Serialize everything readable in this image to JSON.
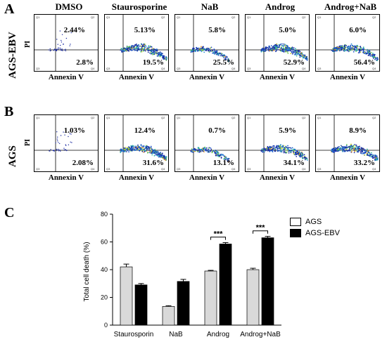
{
  "panels": {
    "a": "A",
    "b": "B",
    "c": "C"
  },
  "columns": [
    "DMSO",
    "Staurosporine",
    "NaB",
    "Androg",
    "Androg+NaB"
  ],
  "rows": [
    {
      "label": "AGS-EBV",
      "plots": [
        {
          "upper": "2.44%",
          "lower": "2.8%"
        },
        {
          "upper": "5.13%",
          "lower": "19.5%"
        },
        {
          "upper": "5.8%",
          "lower": "25.5%"
        },
        {
          "upper": "5.0%",
          "lower": "52.9%"
        },
        {
          "upper": "6.0%",
          "lower": "56.4%"
        }
      ]
    },
    {
      "label": "AGS",
      "plots": [
        {
          "upper": "1.03%",
          "lower": "2.08%"
        },
        {
          "upper": "12.4%",
          "lower": "31.6%"
        },
        {
          "upper": "0.7%",
          "lower": "13.1%"
        },
        {
          "upper": "5.9%",
          "lower": "34.1%"
        },
        {
          "upper": "8.9%",
          "lower": "33.2%"
        }
      ]
    }
  ],
  "y_axis_label": "PI",
  "x_axis_label": "Annexin V",
  "quadrant_labels": [
    "Q1",
    "Q2",
    "Q3",
    "Q4"
  ],
  "chart_data": {
    "type": "bar",
    "categories": [
      "Staurosporin",
      "NaB",
      "Androg",
      "Androg+NaB"
    ],
    "series": [
      {
        "name": "AGS",
        "values": [
          42,
          13.5,
          39,
          40
        ],
        "errors": [
          2,
          0.5,
          0.5,
          1
        ],
        "color": "#d9d9d9"
      },
      {
        "name": "AGS-EBV",
        "values": [
          29,
          31.5,
          58.5,
          63
        ],
        "errors": [
          1,
          1.5,
          1,
          1
        ],
        "color": "#000000"
      }
    ],
    "ylabel": "Total cell death (%)",
    "ylim": [
      0,
      80
    ],
    "yticks": [
      0,
      20,
      40,
      60,
      80
    ],
    "significance": [
      {
        "category": "Androg",
        "label": "***"
      },
      {
        "category": "Androg+NaB",
        "label": "***"
      }
    ],
    "legend_position": "top-right"
  }
}
